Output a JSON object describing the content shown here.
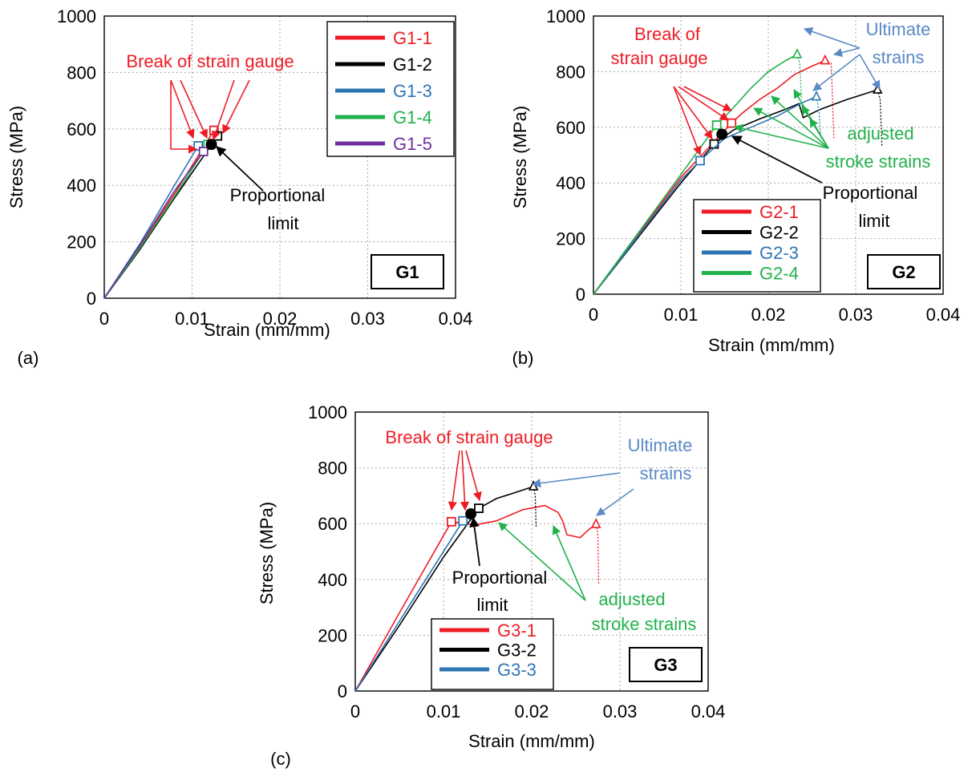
{
  "chart_data": [
    {
      "panel_label": "(a)",
      "type": "line",
      "xlabel": "Strain (mm/mm)",
      "ylabel": "Stress (MPa)",
      "xlim": [
        0,
        0.04
      ],
      "ylim": [
        0,
        1000
      ],
      "xticks": [
        0,
        0.01,
        0.02,
        0.03,
        0.04
      ],
      "yticks": [
        0,
        200,
        400,
        600,
        800,
        1000
      ],
      "xtick_labels": [
        "0",
        "0.01",
        "0.02",
        "0.03",
        "0.04"
      ],
      "ytick_labels": [
        "0",
        "200",
        "400",
        "600",
        "800",
        "1000"
      ],
      "grid": true,
      "legend_position": "top-right",
      "group_label": "G1",
      "series": [
        {
          "name": "G1-1",
          "color": "#ee1c25",
          "points": [
            [
              0,
              0
            ],
            [
              0.004,
              180
            ],
            [
              0.008,
              370
            ],
            [
              0.0125,
              595
            ]
          ],
          "break": [
            0.0125,
            595
          ],
          "break_marker": "square"
        },
        {
          "name": "G1-2",
          "color": "#000000",
          "points": [
            [
              0,
              0
            ],
            [
              0.004,
              170
            ],
            [
              0.008,
              355
            ],
            [
              0.0129,
              575
            ]
          ],
          "break": [
            0.0129,
            575
          ],
          "break_marker": "square"
        },
        {
          "name": "G1-3",
          "color": "#2e75b6",
          "points": [
            [
              0,
              0
            ],
            [
              0.004,
              190
            ],
            [
              0.008,
              400
            ],
            [
              0.0107,
              540
            ]
          ],
          "break": [
            0.0107,
            540
          ],
          "break_marker": "square"
        },
        {
          "name": "G1-4",
          "color": "#22b14c",
          "points": [
            [
              0,
              0
            ],
            [
              0.004,
              175
            ],
            [
              0.008,
              360
            ],
            [
              0.0118,
              545
            ]
          ],
          "break": [
            0.0118,
            545
          ],
          "break_marker": "square"
        },
        {
          "name": "G1-5",
          "color": "#7030a0",
          "points": [
            [
              0,
              0
            ],
            [
              0.004,
              185
            ],
            [
              0.008,
              380
            ],
            [
              0.0113,
              520
            ]
          ],
          "break": [
            0.0113,
            520
          ],
          "break_marker": "square"
        }
      ],
      "proportional_limit": [
        0.0122,
        545
      ],
      "annotations": [
        {
          "text": "Break of strain gauge",
          "color": "#ee1c25"
        },
        {
          "text": "Proportional",
          "color": "#000000"
        },
        {
          "text": "limit",
          "color": "#000000"
        }
      ]
    },
    {
      "panel_label": "(b)",
      "type": "line",
      "xlabel": "Strain (mm/mm)",
      "ylabel": "Stress (MPa)",
      "xlim": [
        0,
        0.04
      ],
      "ylim": [
        0,
        1000
      ],
      "xticks": [
        0,
        0.01,
        0.02,
        0.03,
        0.04
      ],
      "yticks": [
        0,
        200,
        400,
        600,
        800,
        1000
      ],
      "xtick_labels": [
        "0",
        "0.01",
        "0.02",
        "0.03",
        "0.04"
      ],
      "ytick_labels": [
        "0",
        "200",
        "400",
        "600",
        "800",
        "1000"
      ],
      "grid": true,
      "legend_position": "bottom-center",
      "group_label": "G2",
      "series": [
        {
          "name": "G2-1",
          "color": "#ee1c25",
          "points": [
            [
              0,
              0
            ],
            [
              0.005,
              210
            ],
            [
              0.01,
              420
            ],
            [
              0.0158,
              615
            ],
            [
              0.017,
              650
            ],
            [
              0.019,
              700
            ],
            [
              0.021,
              740
            ],
            [
              0.023,
              790
            ],
            [
              0.025,
              820
            ],
            [
              0.0265,
              840
            ]
          ],
          "break": [
            0.0158,
            615
          ],
          "break_marker": "square",
          "ultimate": [
            0.0265,
            840
          ],
          "tail": [
            [
              0.0265,
              840
            ],
            [
              0.0272,
              830
            ],
            [
              0.0275,
              560
            ]
          ]
        },
        {
          "name": "G2-2",
          "color": "#000000",
          "points": [
            [
              0,
              0
            ],
            [
              0.005,
              200
            ],
            [
              0.01,
              400
            ],
            [
              0.0138,
              540
            ],
            [
              0.016,
              590
            ],
            [
              0.019,
              630
            ],
            [
              0.022,
              665
            ],
            [
              0.0235,
              685
            ],
            [
              0.024,
              635
            ],
            [
              0.026,
              665
            ],
            [
              0.029,
              700
            ],
            [
              0.0325,
              735
            ]
          ],
          "break": [
            0.0138,
            540
          ],
          "break_marker": "square",
          "ultimate": [
            0.0325,
            735
          ],
          "tail": [
            [
              0.0325,
              735
            ],
            [
              0.0328,
              700
            ],
            [
              0.033,
              530
            ]
          ]
        },
        {
          "name": "G2-3",
          "color": "#2e75b6",
          "points": [
            [
              0,
              0
            ],
            [
              0.005,
              205
            ],
            [
              0.01,
              410
            ],
            [
              0.0122,
              480
            ],
            [
              0.015,
              560
            ],
            [
              0.018,
              600
            ],
            [
              0.021,
              640
            ],
            [
              0.024,
              690
            ],
            [
              0.0255,
              710
            ]
          ],
          "break": [
            0.0122,
            480
          ],
          "break_marker": "square",
          "ultimate": [
            0.0255,
            710
          ],
          "tail": [
            [
              0.0255,
              710
            ],
            [
              0.0258,
              660
            ],
            [
              0.026,
              560
            ]
          ]
        },
        {
          "name": "G2-4",
          "color": "#22b14c",
          "points": [
            [
              0,
              0
            ],
            [
              0.005,
              215
            ],
            [
              0.01,
              430
            ],
            [
              0.0141,
              608
            ],
            [
              0.016,
              670
            ],
            [
              0.018,
              740
            ],
            [
              0.02,
              800
            ],
            [
              0.022,
              840
            ],
            [
              0.0233,
              862
            ]
          ],
          "break": [
            0.0141,
            608
          ],
          "break_marker": "square",
          "ultimate": [
            0.0233,
            862
          ],
          "tail": [
            [
              0.0233,
              862
            ],
            [
              0.0236,
              830
            ],
            [
              0.0238,
              700
            ]
          ]
        }
      ],
      "proportional_limit": [
        0.0147,
        575
      ],
      "annotations": [
        {
          "text": "Break of",
          "color": "#ee1c25"
        },
        {
          "text": "strain gauge",
          "color": "#ee1c25"
        },
        {
          "text": "Ultimate",
          "color": "#5b8ac6"
        },
        {
          "text": "strains",
          "color": "#5b8ac6"
        },
        {
          "text": "adjusted",
          "color": "#22b14c"
        },
        {
          "text": "stroke strains",
          "color": "#22b14c"
        },
        {
          "text": "Proportional",
          "color": "#000000"
        },
        {
          "text": "limit",
          "color": "#000000"
        }
      ]
    },
    {
      "panel_label": "(c)",
      "type": "line",
      "xlabel": "Strain (mm/mm)",
      "ylabel": "Stress (MPa)",
      "xlim": [
        0,
        0.04
      ],
      "ylim": [
        0,
        1000
      ],
      "xticks": [
        0,
        0.01,
        0.02,
        0.03,
        0.04
      ],
      "yticks": [
        0,
        200,
        400,
        600,
        800,
        1000
      ],
      "xtick_labels": [
        "0",
        "0.01",
        "0.02",
        "0.03",
        "0.04"
      ],
      "ytick_labels": [
        "0",
        "200",
        "400",
        "600",
        "800",
        "1000"
      ],
      "grid": true,
      "legend_position": "bottom-left",
      "group_label": "G3",
      "series": [
        {
          "name": "G3-1",
          "color": "#ee1c25",
          "points": [
            [
              0,
              0
            ],
            [
              0.005,
              280
            ],
            [
              0.0109,
              607
            ],
            [
              0.0135,
              595
            ],
            [
              0.016,
              610
            ],
            [
              0.019,
              650
            ],
            [
              0.0215,
              665
            ],
            [
              0.023,
              640
            ],
            [
              0.0235,
              610
            ],
            [
              0.024,
              560
            ],
            [
              0.0255,
              550
            ],
            [
              0.0265,
              580
            ],
            [
              0.0273,
              598
            ]
          ],
          "break": [
            0.0109,
            607
          ],
          "break_marker": "square",
          "ultimate": [
            0.0273,
            598
          ],
          "tail": [
            [
              0.0273,
              598
            ],
            [
              0.0275,
              560
            ],
            [
              0.0276,
              380
            ]
          ]
        },
        {
          "name": "G3-2",
          "color": "#000000",
          "points": [
            [
              0,
              0
            ],
            [
              0.005,
              235
            ],
            [
              0.01,
              480
            ],
            [
              0.014,
              655
            ],
            [
              0.016,
              690
            ],
            [
              0.018,
              710
            ],
            [
              0.0202,
              733
            ]
          ],
          "break": [
            0.014,
            655
          ],
          "break_marker": "square",
          "ultimate": [
            0.0202,
            733
          ],
          "tail": [
            [
              0.0202,
              733
            ],
            [
              0.0204,
              700
            ],
            [
              0.0205,
              590
            ]
          ]
        },
        {
          "name": "G3-3",
          "color": "#2e75b6",
          "points": [
            [
              0,
              0
            ],
            [
              0.005,
              250
            ],
            [
              0.0122,
              610
            ]
          ],
          "break": [
            0.0122,
            610
          ],
          "break_marker": "square"
        }
      ],
      "proportional_limit": [
        0.0131,
        635
      ],
      "annotations": [
        {
          "text": "Break of strain gauge",
          "color": "#ee1c25"
        },
        {
          "text": "Ultimate",
          "color": "#5b8ac6"
        },
        {
          "text": "strains",
          "color": "#5b8ac6"
        },
        {
          "text": "adjusted",
          "color": "#22b14c"
        },
        {
          "text": "stroke strains",
          "color": "#22b14c"
        },
        {
          "text": "Proportional",
          "color": "#000000"
        },
        {
          "text": "limit",
          "color": "#000000"
        }
      ]
    }
  ]
}
